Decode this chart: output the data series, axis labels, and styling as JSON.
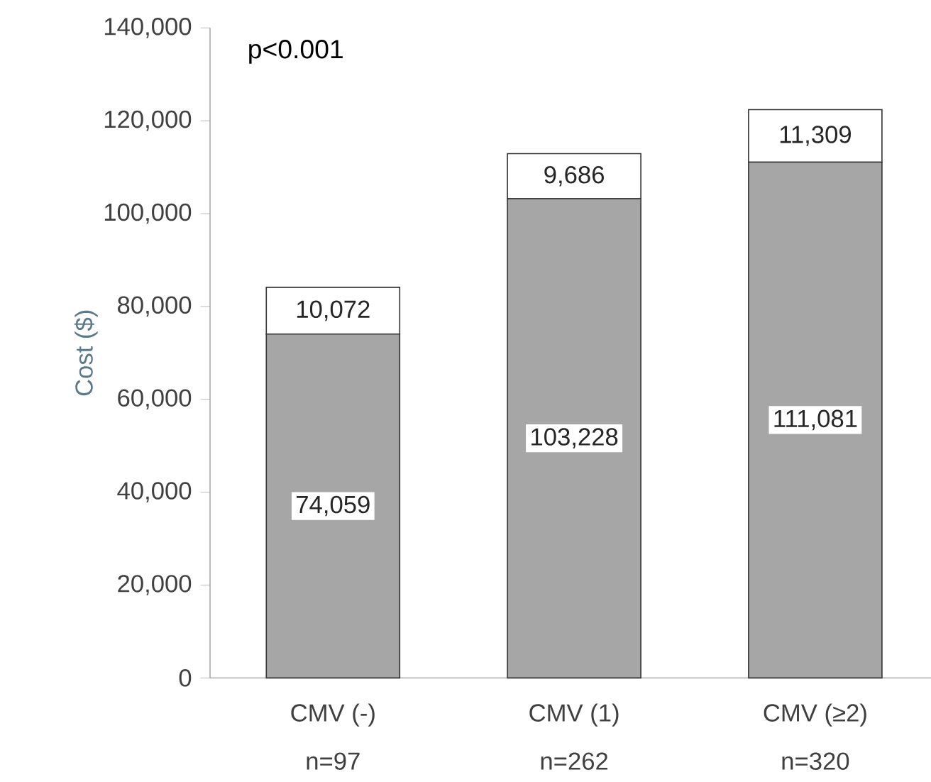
{
  "chart_data": {
    "type": "bar",
    "stacked": true,
    "ylabel": "Cost ($)",
    "categories": [
      "CMV (-)",
      "CMV (1)",
      "CMV (≥2)"
    ],
    "series": [
      {
        "color": "#a6a6a6",
        "values": [
          74059,
          103228,
          111081
        ],
        "value_labels": [
          "74,059",
          "103,228",
          "111,081"
        ]
      },
      {
        "color": "#ffffff",
        "values": [
          10072,
          9686,
          11309
        ],
        "value_labels": [
          "10,072",
          "9,686",
          "11,309"
        ]
      }
    ],
    "ylim": [
      0,
      140000
    ],
    "yticks": [
      0,
      {
        "value": 20000,
        "label": "20,000"
      },
      {
        "value": 40000,
        "label": "40,000"
      },
      {
        "value": 60000,
        "label": "60,000"
      },
      {
        "value": 80000,
        "label": "80,000"
      },
      {
        "value": 100000,
        "label": "100,000"
      },
      {
        "value": 120000,
        "label": "120,000"
      },
      {
        "value": 140000,
        "label": "140,000"
      }
    ],
    "annotations": [
      "p<0.001",
      "n=97",
      "n=262",
      "n=320"
    ],
    "grid": false
  }
}
